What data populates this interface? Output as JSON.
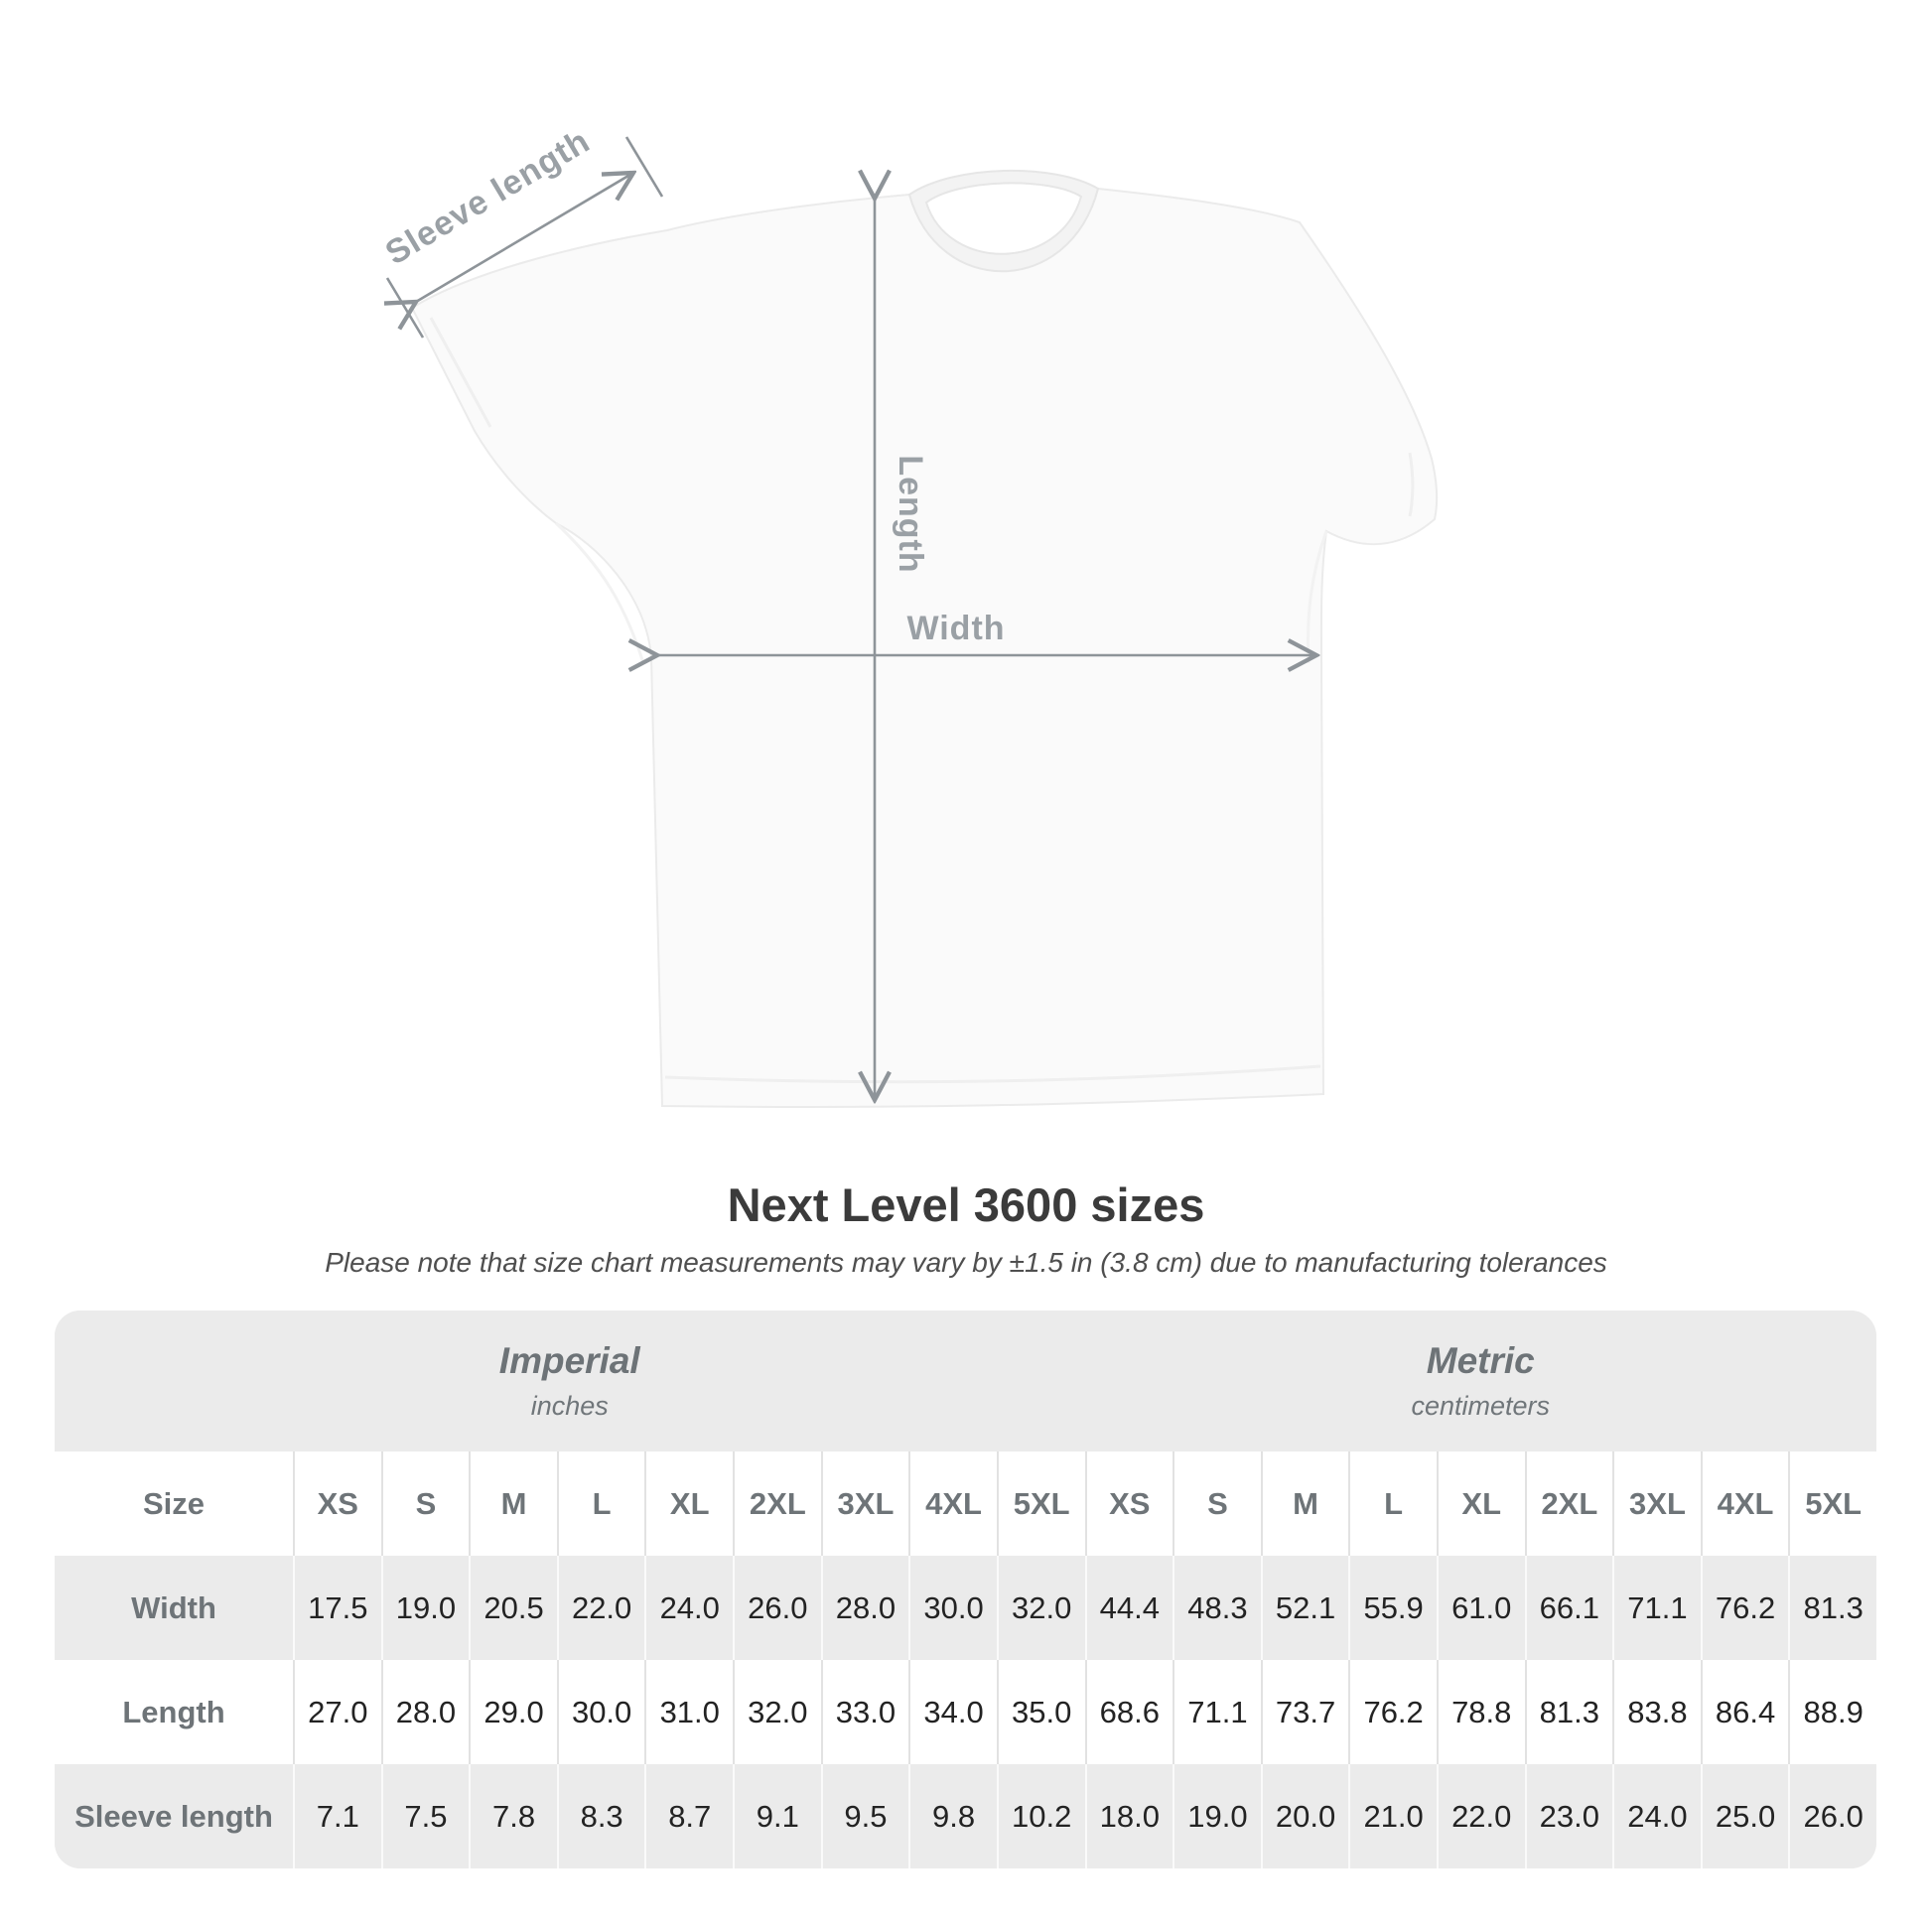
{
  "diagram": {
    "labels": {
      "sleeve_length": "Sleeve length",
      "length": "Length",
      "width": "Width"
    },
    "shirt_color": "#fafafa",
    "arrow_color": "#8e9499",
    "label_color": "#9aa0a5"
  },
  "title": "Next Level 3600 sizes",
  "subtitle": "Please note that size chart measurements may vary by ±1.5 in (3.8 cm) due to manufacturing tolerances",
  "table": {
    "size_header": "Size",
    "sizes": [
      "XS",
      "S",
      "M",
      "L",
      "XL",
      "2XL",
      "3XL",
      "4XL",
      "5XL"
    ],
    "unit_groups": [
      {
        "name": "Imperial",
        "unit": "inches"
      },
      {
        "name": "Metric",
        "unit": "centimeters"
      }
    ],
    "rows": [
      {
        "label": "Width",
        "imperial": [
          "17.5",
          "19.0",
          "20.5",
          "22.0",
          "24.0",
          "26.0",
          "28.0",
          "30.0",
          "32.0"
        ],
        "metric": [
          "44.4",
          "48.3",
          "52.1",
          "55.9",
          "61.0",
          "66.1",
          "71.1",
          "76.2",
          "81.3"
        ]
      },
      {
        "label": "Length",
        "imperial": [
          "27.0",
          "28.0",
          "29.0",
          "30.0",
          "31.0",
          "32.0",
          "33.0",
          "34.0",
          "35.0"
        ],
        "metric": [
          "68.6",
          "71.1",
          "73.7",
          "76.2",
          "78.8",
          "81.3",
          "83.8",
          "86.4",
          "88.9"
        ]
      },
      {
        "label": "Sleeve length",
        "imperial": [
          "7.1",
          "7.5",
          "7.8",
          "8.3",
          "8.7",
          "9.1",
          "9.5",
          "9.8",
          "10.2"
        ],
        "metric": [
          "18.0",
          "19.0",
          "20.0",
          "21.0",
          "22.0",
          "23.0",
          "24.0",
          "25.0",
          "26.0"
        ]
      }
    ]
  },
  "chart_data": {
    "type": "table",
    "title": "Next Level 3600 sizes",
    "note": "Please note that size chart measurements may vary by ±1.5 in (3.8 cm) due to manufacturing tolerances",
    "columns": [
      "XS",
      "S",
      "M",
      "L",
      "XL",
      "2XL",
      "3XL",
      "4XL",
      "5XL"
    ],
    "series": [
      {
        "name": "Width (inches)",
        "values": [
          17.5,
          19.0,
          20.5,
          22.0,
          24.0,
          26.0,
          28.0,
          30.0,
          32.0
        ]
      },
      {
        "name": "Length (inches)",
        "values": [
          27.0,
          28.0,
          29.0,
          30.0,
          31.0,
          32.0,
          33.0,
          34.0,
          35.0
        ]
      },
      {
        "name": "Sleeve length (inches)",
        "values": [
          7.1,
          7.5,
          7.8,
          8.3,
          8.7,
          9.1,
          9.5,
          9.8,
          10.2
        ]
      },
      {
        "name": "Width (cm)",
        "values": [
          44.4,
          48.3,
          52.1,
          55.9,
          61.0,
          66.1,
          71.1,
          76.2,
          81.3
        ]
      },
      {
        "name": "Length (cm)",
        "values": [
          68.6,
          71.1,
          73.7,
          76.2,
          78.8,
          81.3,
          83.8,
          86.4,
          88.9
        ]
      },
      {
        "name": "Sleeve length (cm)",
        "values": [
          18.0,
          19.0,
          20.0,
          21.0,
          22.0,
          23.0,
          24.0,
          25.0,
          26.0
        ]
      }
    ]
  },
  "colors": {
    "background": "#ffffff",
    "table_band": "#ebebeb",
    "title_text": "#3b3b3b",
    "header_text": "#6e7478",
    "value_text": "#232323"
  }
}
